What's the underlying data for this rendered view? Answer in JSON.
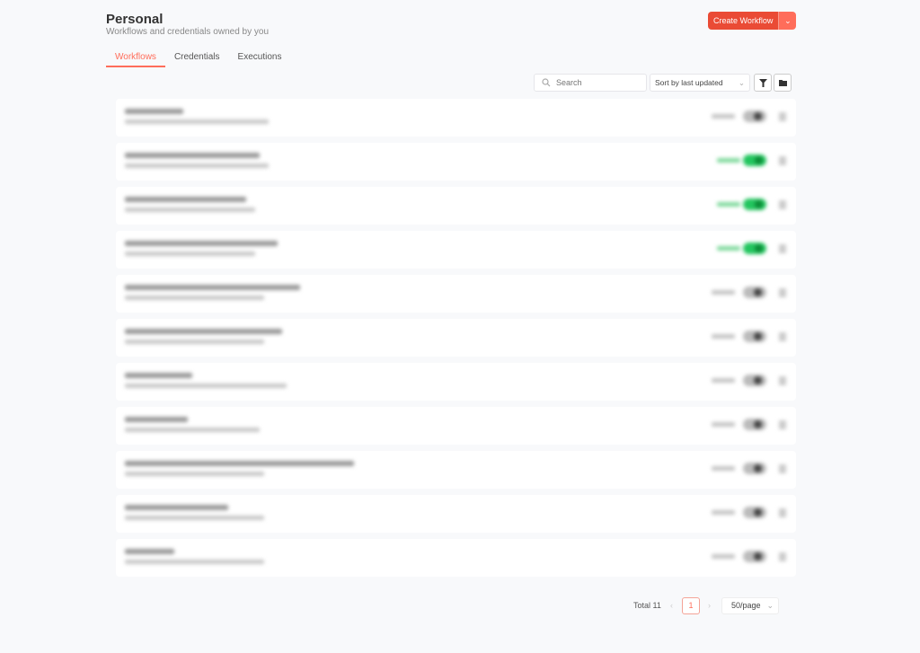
{
  "header": {
    "title": "Personal",
    "subtitle": "Workflows and credentials owned by you",
    "create_label": "Create Workflow"
  },
  "tabs": [
    {
      "label": "Workflows",
      "active": true
    },
    {
      "label": "Credentials"
    },
    {
      "label": "Executions"
    }
  ],
  "toolbar": {
    "search_placeholder": "Search",
    "sort_label": "Sort by last updated"
  },
  "workflows": [
    {
      "active": false
    },
    {
      "active": true
    },
    {
      "active": true
    },
    {
      "active": true
    },
    {
      "active": false
    },
    {
      "active": false
    },
    {
      "active": false
    },
    {
      "active": false
    },
    {
      "active": false
    },
    {
      "active": false
    },
    {
      "active": false
    }
  ],
  "pagination": {
    "total": "Total 11",
    "page": "1",
    "per_page": "50/page"
  },
  "colors": {
    "accent": "#ff6d5a",
    "button": "#ea4b35",
    "active": "#22c55e"
  }
}
